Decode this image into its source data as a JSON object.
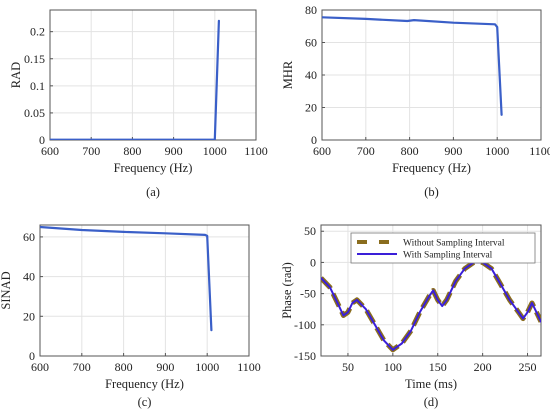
{
  "chart_data": [
    {
      "id": "a",
      "type": "line",
      "caption": "(a)",
      "xlabel": "Frequency (Hz)",
      "ylabel": "RAD",
      "xlim": [
        600,
        1100
      ],
      "ylim": [
        0,
        0.24
      ],
      "xticks": [
        600,
        700,
        800,
        900,
        1000,
        1100
      ],
      "yticks": [
        0,
        0.05,
        0.1,
        0.15,
        0.2
      ],
      "grid": true,
      "series": [
        {
          "color": "#3a5fc8",
          "x": [
            600,
            1000,
            1010
          ],
          "y": [
            0.0005,
            0.0005,
            0.22
          ]
        }
      ]
    },
    {
      "id": "b",
      "type": "line",
      "caption": "(b)",
      "xlabel": "Frequency (Hz)",
      "ylabel": "MHR",
      "xlim": [
        600,
        1100
      ],
      "ylim": [
        0,
        80
      ],
      "xticks": [
        600,
        700,
        800,
        900,
        1000,
        1100
      ],
      "yticks": [
        0,
        20,
        40,
        60,
        80
      ],
      "grid": true,
      "series": [
        {
          "color": "#3a5fc8",
          "x": [
            600,
            700,
            795,
            810,
            900,
            995,
            1000,
            1010
          ],
          "y": [
            75.5,
            74.5,
            73.2,
            73.8,
            72.2,
            71.2,
            69.5,
            15.5
          ]
        }
      ]
    },
    {
      "id": "c",
      "type": "line",
      "caption": "(c)",
      "xlabel": "Frequency (Hz)",
      "ylabel": "SINAD",
      "xlim": [
        600,
        1100
      ],
      "ylim": [
        0,
        66
      ],
      "xticks": [
        600,
        700,
        800,
        900,
        1000,
        1100
      ],
      "yticks": [
        0,
        20,
        40,
        60
      ],
      "grid": true,
      "series": [
        {
          "color": "#3a5fc8",
          "x": [
            600,
            700,
            800,
            900,
            995,
            1000,
            1010
          ],
          "y": [
            65,
            63.5,
            62.5,
            61.8,
            61,
            60.5,
            13
          ]
        }
      ]
    },
    {
      "id": "d",
      "type": "line",
      "caption": "(d)",
      "xlabel": "Time (ms)",
      "ylabel": "Phase (rad)",
      "xlim": [
        20,
        265
      ],
      "ylim": [
        -150,
        60
      ],
      "xticks": [
        50,
        100,
        150,
        200,
        250
      ],
      "yticks": [
        -150,
        -100,
        -50,
        0,
        50
      ],
      "grid": true,
      "legend": {
        "position": "top-right",
        "entries": [
          "Without Sampling Interval",
          "With Sampling Interval"
        ]
      },
      "series": [
        {
          "name": "Without Sampling Interval",
          "color": "#8a6d1e",
          "style": "dashed",
          "x": [
            20,
            30,
            40,
            45,
            50,
            55,
            60,
            70,
            80,
            90,
            100,
            110,
            120,
            130,
            140,
            145,
            150,
            155,
            160,
            170,
            180,
            190,
            200,
            210,
            220,
            230,
            240,
            245,
            250,
            255,
            260,
            265
          ],
          "y": [
            -25,
            -40,
            -70,
            -85,
            -80,
            -65,
            -60,
            -75,
            -100,
            -125,
            -140,
            -130,
            -110,
            -80,
            -55,
            -45,
            -60,
            -70,
            -60,
            -30,
            -10,
            0,
            0,
            -10,
            -35,
            -60,
            -80,
            -90,
            -80,
            -65,
            -80,
            -95
          ]
        },
        {
          "name": "With Sampling Interval",
          "color": "#3a1fd8",
          "style": "solid",
          "x": [
            20,
            30,
            40,
            45,
            50,
            55,
            60,
            70,
            80,
            90,
            100,
            110,
            120,
            130,
            140,
            145,
            150,
            155,
            160,
            170,
            180,
            190,
            200,
            210,
            220,
            230,
            240,
            245,
            250,
            255,
            260,
            265
          ],
          "y": [
            -25,
            -40,
            -70,
            -85,
            -80,
            -65,
            -60,
            -75,
            -100,
            -125,
            -140,
            -130,
            -110,
            -80,
            -55,
            -45,
            -60,
            -70,
            -60,
            -30,
            -10,
            0,
            0,
            -10,
            -35,
            -60,
            -80,
            -90,
            -80,
            -65,
            -80,
            -95
          ]
        }
      ]
    }
  ]
}
